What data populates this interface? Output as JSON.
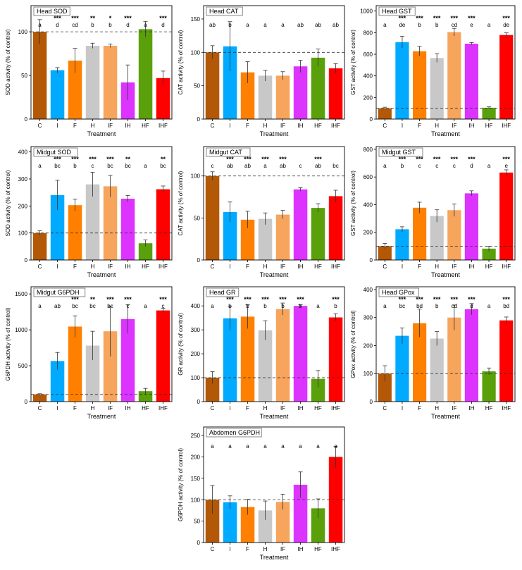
{
  "colors": {
    "C": "#b35806",
    "I": "#00aaff",
    "F": "#ff8000",
    "H": "#c8c8c8",
    "IF": "#f7a45c",
    "IH": "#dd33ff",
    "HF": "#5aa00a",
    "IHF": "#ff0000"
  },
  "chart_data": [
    {
      "type": "bar",
      "title": "Head SOD",
      "xlabel": "Treatment",
      "ylabel": "SOD activity (% of control)",
      "categories": [
        "C",
        "I",
        "F",
        "H",
        "IF",
        "IH",
        "HF",
        "IHF"
      ],
      "values": [
        100,
        56,
        67,
        84,
        84,
        42,
        103,
        47
      ],
      "errors": [
        14,
        3,
        14,
        3,
        2,
        20,
        9,
        8
      ],
      "ylim": [
        0,
        130
      ],
      "yticks": [
        0,
        50,
        100
      ],
      "stars": [
        "",
        "***",
        "***",
        "**",
        "*",
        "***",
        "",
        "***"
      ],
      "letters": [
        "a",
        "d",
        "cd",
        "b",
        "b",
        "d",
        "a",
        "d"
      ],
      "reference_line": 100
    },
    {
      "type": "bar",
      "title": "Head CAT",
      "xlabel": "Treatment",
      "ylabel": "CAT activity (% of control)",
      "categories": [
        "C",
        "I",
        "F",
        "H",
        "IF",
        "IH",
        "HF",
        "IHF"
      ],
      "values": [
        100,
        109,
        70,
        65,
        65,
        79,
        92,
        76
      ],
      "errors": [
        10,
        37,
        16,
        8,
        6,
        9,
        13,
        7
      ],
      "ylim": [
        0,
        170
      ],
      "yticks": [
        0,
        50,
        100,
        150
      ],
      "stars": [
        "",
        "",
        "",
        "",
        "",
        "",
        "",
        ""
      ],
      "letters": [
        "ab",
        "b",
        "a",
        "a",
        "a",
        "ab",
        "ab",
        "ab"
      ],
      "reference_line": 100
    },
    {
      "type": "bar",
      "title": "Head GST",
      "xlabel": "Treatment",
      "ylabel": "GST activity (% of control)",
      "categories": [
        "C",
        "I",
        "F",
        "H",
        "IF",
        "IH",
        "HF",
        "IHF"
      ],
      "values": [
        100,
        712,
        628,
        565,
        805,
        698,
        105,
        778
      ],
      "errors": [
        10,
        55,
        45,
        40,
        35,
        10,
        8,
        20
      ],
      "ylim": [
        0,
        1050
      ],
      "yticks": [
        0,
        200,
        400,
        600,
        800,
        1000
      ],
      "stars": [
        "",
        "***",
        "***",
        "***",
        "***",
        "***",
        "",
        "***"
      ],
      "letters": [
        "a",
        "de",
        "b",
        "b",
        "cd",
        "e",
        "a",
        "de"
      ],
      "reference_line": 100
    },
    {
      "type": "bar",
      "title": "Midgut SOD",
      "xlabel": "Treatment",
      "ylabel": "SOD activity (% of control)",
      "categories": [
        "C",
        "I",
        "F",
        "H",
        "IF",
        "IH",
        "HF",
        "IHF"
      ],
      "values": [
        100,
        240,
        203,
        280,
        273,
        227,
        62,
        262
      ],
      "errors": [
        8,
        55,
        22,
        45,
        40,
        12,
        12,
        12
      ],
      "ylim": [
        0,
        420
      ],
      "yticks": [
        0,
        100,
        200,
        300,
        400
      ],
      "stars": [
        "",
        "***",
        "***",
        "***",
        "***",
        "**",
        "",
        "**"
      ],
      "letters": [
        "a",
        "bc",
        "b",
        "c",
        "bc",
        "bc",
        "a",
        "bc"
      ],
      "reference_line": 100
    },
    {
      "type": "bar",
      "title": "Midgut CAT",
      "xlabel": "Treatment",
      "ylabel": "CAT activity (% of control)",
      "categories": [
        "C",
        "I",
        "F",
        "H",
        "IF",
        "IH",
        "HF",
        "IHF"
      ],
      "values": [
        100,
        57,
        48,
        49,
        54,
        84,
        62,
        76
      ],
      "errors": [
        5,
        12,
        10,
        7,
        5,
        2,
        5,
        7
      ],
      "ylim": [
        0,
        135
      ],
      "yticks": [
        0,
        50,
        100
      ],
      "stars": [
        "",
        "***",
        "***",
        "***",
        "***",
        "",
        "***",
        ""
      ],
      "letters": [
        "c",
        "ab",
        "ab",
        "a",
        "ab",
        "c",
        "ab",
        "bc"
      ],
      "reference_line": 100
    },
    {
      "type": "bar",
      "title": "Midgut GST",
      "xlabel": "Treatment",
      "ylabel": "GST activity (% of control)",
      "categories": [
        "C",
        "I",
        "F",
        "H",
        "IF",
        "IH",
        "HF",
        "IHF"
      ],
      "values": [
        100,
        222,
        378,
        318,
        360,
        482,
        82,
        632
      ],
      "errors": [
        20,
        18,
        40,
        45,
        45,
        18,
        18,
        20
      ],
      "ylim": [
        0,
        820
      ],
      "yticks": [
        0,
        200,
        400,
        600,
        800
      ],
      "stars": [
        "",
        "***",
        "***",
        "***",
        "***",
        "***",
        "",
        "***"
      ],
      "letters": [
        "a",
        "b",
        "c",
        "c",
        "c",
        "d",
        "a",
        "e"
      ],
      "reference_line": 100
    },
    {
      "type": "bar",
      "title": "Midgut G6PDH",
      "xlabel": "Treatment",
      "ylabel": "G6PDH activity (% of control)",
      "categories": [
        "C",
        "I",
        "F",
        "H",
        "IF",
        "IH",
        "HF",
        "IHF"
      ],
      "values": [
        100,
        565,
        1045,
        780,
        980,
        1150,
        145,
        1270
      ],
      "errors": [
        10,
        120,
        150,
        200,
        350,
        200,
        40,
        30
      ],
      "ylim": [
        0,
        1600
      ],
      "yticks": [
        0,
        500,
        1000,
        1500
      ],
      "stars": [
        "",
        "",
        "***",
        "**",
        "***",
        "***",
        "",
        "***"
      ],
      "letters": [
        "a",
        "ab",
        "bc",
        "bc",
        "bc",
        "c",
        "a",
        "c"
      ],
      "reference_line": 100
    },
    {
      "type": "bar",
      "title": "Head GR",
      "xlabel": "Treatment",
      "ylabel": "GR activity (% of control)",
      "categories": [
        "C",
        "I",
        "F",
        "H",
        "IF",
        "IH",
        "HF",
        "IHF"
      ],
      "values": [
        100,
        348,
        355,
        298,
        387,
        400,
        95,
        352
      ],
      "errors": [
        25,
        50,
        50,
        40,
        25,
        5,
        35,
        15
      ],
      "ylim": [
        0,
        480
      ],
      "yticks": [
        0,
        100,
        200,
        300,
        400
      ],
      "stars": [
        "",
        "***",
        "***",
        "***",
        "***",
        "***",
        "",
        "***"
      ],
      "letters": [
        "a",
        "b",
        "b",
        "b",
        "b",
        "b",
        "a",
        "b"
      ],
      "reference_line": 100
    },
    {
      "type": "bar",
      "title": "Head GPox",
      "xlabel": "Treatment",
      "ylabel": "GPox activity (% of control)",
      "categories": [
        "C",
        "I",
        "F",
        "H",
        "IF",
        "IH",
        "HF",
        "IHF"
      ],
      "values": [
        100,
        235,
        280,
        225,
        300,
        330,
        108,
        290
      ],
      "errors": [
        28,
        28,
        50,
        25,
        45,
        20,
        12,
        12
      ],
      "ylim": [
        0,
        410
      ],
      "yticks": [
        0,
        100,
        200,
        300,
        400
      ],
      "stars": [
        "",
        "***",
        "***",
        "***",
        "***",
        "***",
        "",
        "***"
      ],
      "letters": [
        "a",
        "bc",
        "bd",
        "b",
        "cd",
        "d",
        "a",
        "bd"
      ],
      "reference_line": 100
    },
    {
      "type": "bar",
      "title": "Abdomen G6PDH",
      "xlabel": "Treatment",
      "ylabel": "G6PDH activity (% of control)",
      "categories": [
        "C",
        "I",
        "F",
        "H",
        "IF",
        "IH",
        "HF",
        "IHF"
      ],
      "values": [
        100,
        94,
        83,
        75,
        95,
        135,
        80,
        200
      ],
      "errors": [
        33,
        15,
        18,
        22,
        18,
        30,
        22,
        25
      ],
      "ylim": [
        0,
        270
      ],
      "yticks": [
        0,
        50,
        100,
        150,
        200,
        250
      ],
      "stars": [
        "",
        "",
        "",
        "",
        "",
        "",
        "",
        ""
      ],
      "letters": [
        "a",
        "a",
        "a",
        "a",
        "a",
        "a",
        "a",
        "a"
      ],
      "reference_line": 100
    }
  ]
}
